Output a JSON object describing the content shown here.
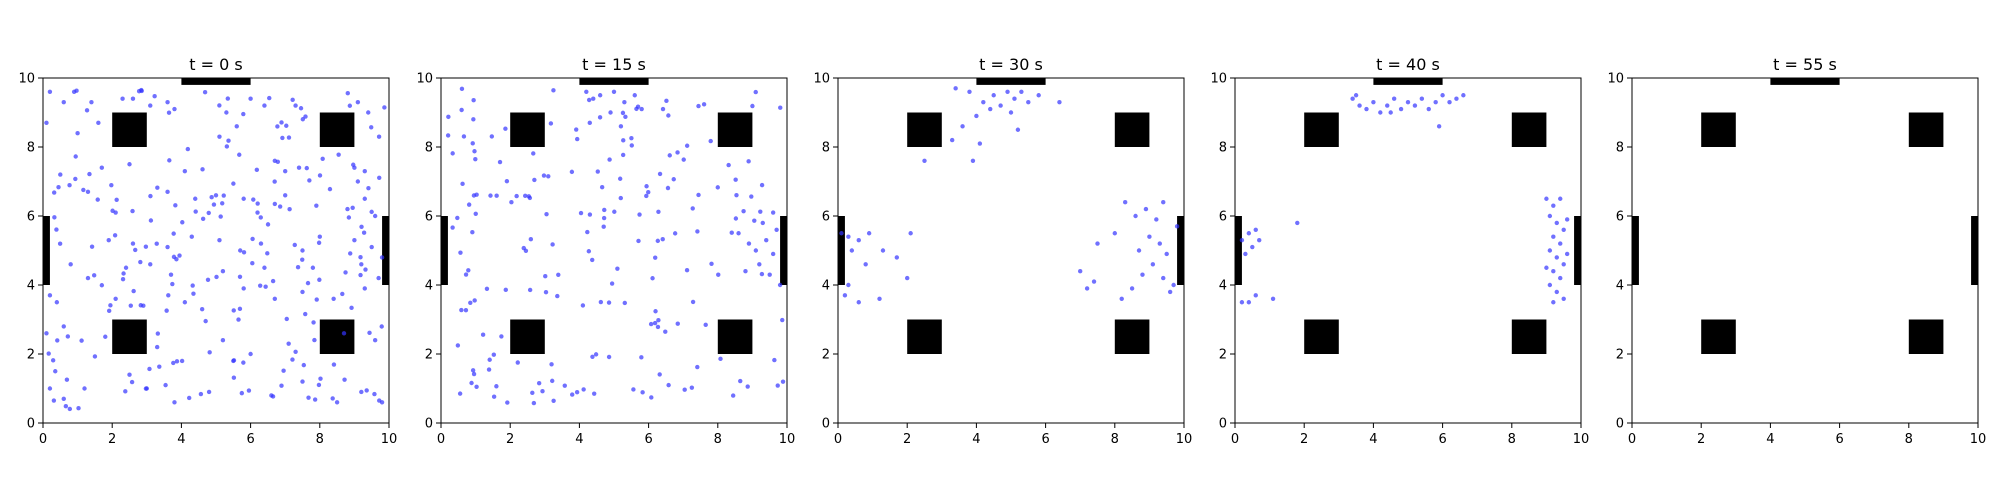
{
  "chart_data": [
    {
      "type": "scatter",
      "title": "t = 0 s",
      "xlabel": "",
      "ylabel": "",
      "xlim": [
        0,
        10
      ],
      "ylim": [
        0,
        10
      ],
      "xticks": [
        "0",
        "2",
        "4",
        "6",
        "8",
        "10"
      ],
      "yticks": [
        "0",
        "2",
        "4",
        "6",
        "8",
        "10"
      ],
      "grid": false,
      "point_color": "#3333ff",
      "distribution": {
        "mode": "uniform",
        "count": 190,
        "region": [
          0.1,
          9.9,
          0.4,
          9.7
        ],
        "seed": 11
      },
      "points": [
        [
          0.2,
          9.6
        ],
        [
          0.6,
          9.3
        ],
        [
          0.9,
          9.6
        ],
        [
          1.4,
          9.3
        ],
        [
          2.3,
          9.4
        ],
        [
          2.6,
          9.4
        ],
        [
          3.1,
          9.2
        ],
        [
          3.6,
          9.3
        ],
        [
          3.8,
          9.1
        ],
        [
          6.0,
          9.4
        ],
        [
          6.4,
          9.2
        ],
        [
          7.3,
          9.2
        ],
        [
          9.1,
          9.3
        ],
        [
          9.4,
          9.0
        ],
        [
          0.1,
          8.7
        ],
        [
          1.0,
          8.4
        ],
        [
          1.6,
          8.7
        ],
        [
          5.3,
          9.0
        ],
        [
          5.1,
          8.3
        ],
        [
          5.6,
          8.6
        ],
        [
          0.5,
          7.2
        ],
        [
          1.7,
          7.4
        ],
        [
          2.5,
          7.5
        ],
        [
          6.7,
          7.6
        ],
        [
          7.0,
          7.3
        ],
        [
          7.4,
          7.4
        ],
        [
          9.0,
          7.4
        ],
        [
          9.1,
          7.0
        ],
        [
          9.3,
          7.3
        ],
        [
          1.3,
          6.7
        ],
        [
          2.1,
          6.1
        ],
        [
          3.6,
          6.7
        ],
        [
          4.4,
          6.5
        ],
        [
          5.0,
          6.6
        ],
        [
          5.8,
          6.5
        ],
        [
          6.2,
          6.1
        ],
        [
          7.0,
          6.6
        ],
        [
          7.9,
          6.3
        ],
        [
          8.8,
          6.2
        ],
        [
          9.3,
          6.5
        ],
        [
          9.6,
          6.0
        ],
        [
          1.9,
          5.3
        ],
        [
          2.6,
          5.2
        ],
        [
          3.6,
          5.1
        ],
        [
          4.3,
          5.4
        ],
        [
          5.1,
          5.3
        ],
        [
          5.7,
          5.0
        ],
        [
          6.3,
          5.2
        ],
        [
          7.5,
          5.0
        ],
        [
          8.0,
          5.4
        ],
        [
          9.0,
          5.3
        ],
        [
          9.5,
          5.1
        ],
        [
          9.8,
          4.8
        ],
        [
          0.8,
          4.6
        ],
        [
          2.4,
          4.5
        ],
        [
          3.1,
          4.6
        ],
        [
          3.7,
          4.3
        ],
        [
          5.2,
          4.4
        ],
        [
          6.4,
          4.5
        ],
        [
          7.8,
          4.5
        ],
        [
          9.2,
          4.6
        ],
        [
          9.7,
          4.2
        ],
        [
          0.2,
          3.7
        ],
        [
          0.4,
          3.5
        ],
        [
          1.3,
          4.2
        ],
        [
          2.1,
          3.6
        ],
        [
          2.9,
          3.4
        ],
        [
          4.1,
          3.5
        ],
        [
          4.6,
          3.3
        ],
        [
          5.8,
          3.9
        ],
        [
          6.7,
          3.6
        ],
        [
          7.5,
          3.8
        ],
        [
          8.4,
          3.6
        ],
        [
          9.3,
          3.9
        ],
        [
          0.1,
          2.6
        ],
        [
          0.6,
          2.8
        ],
        [
          1.8,
          2.5
        ],
        [
          3.3,
          2.2
        ],
        [
          5.2,
          2.4
        ],
        [
          6.0,
          2.0
        ],
        [
          7.1,
          2.3
        ],
        [
          8.7,
          2.6
        ],
        [
          9.6,
          2.4
        ],
        [
          0.2,
          1.0
        ],
        [
          0.6,
          0.7
        ],
        [
          1.2,
          1.0
        ],
        [
          2.5,
          1.4
        ],
        [
          3.0,
          1.0
        ],
        [
          3.8,
          0.6
        ],
        [
          4.8,
          0.9
        ],
        [
          5.5,
          1.8
        ],
        [
          6.6,
          0.8
        ],
        [
          7.5,
          1.2
        ],
        [
          8.5,
          0.6
        ],
        [
          9.2,
          0.9
        ],
        [
          9.8,
          0.6
        ]
      ]
    },
    {
      "type": "scatter",
      "title": "t = 15 s",
      "xlabel": "",
      "ylabel": "",
      "xlim": [
        0,
        10
      ],
      "ylim": [
        0,
        10
      ],
      "xticks": [
        "0",
        "2",
        "4",
        "6",
        "8",
        "10"
      ],
      "yticks": [
        "0",
        "2",
        "4",
        "6",
        "8",
        "10"
      ],
      "grid": false,
      "point_color": "#3333ff",
      "distribution": {
        "mode": "mixed",
        "count": 190,
        "region": [
          0.2,
          9.9,
          0.5,
          9.7
        ],
        "seed": 23
      },
      "points": [
        [
          4.2,
          9.6
        ],
        [
          4.4,
          9.4
        ],
        [
          4.6,
          9.5
        ],
        [
          5.0,
          9.6
        ],
        [
          5.3,
          9.3
        ],
        [
          5.6,
          9.5
        ],
        [
          4.9,
          9.0
        ],
        [
          5.8,
          9.1
        ],
        [
          4.3,
          8.7
        ],
        [
          5.2,
          8.6
        ],
        [
          8.6,
          5.5
        ],
        [
          8.9,
          5.2
        ],
        [
          9.1,
          5.0
        ],
        [
          9.4,
          5.3
        ],
        [
          9.6,
          4.9
        ],
        [
          9.7,
          5.6
        ],
        [
          9.2,
          4.6
        ],
        [
          9.5,
          4.3
        ],
        [
          9.8,
          4.0
        ],
        [
          8.8,
          4.4
        ],
        [
          9.3,
          5.8
        ],
        [
          9.6,
          6.1
        ]
      ]
    },
    {
      "type": "scatter",
      "title": "t = 30 s",
      "xlabel": "",
      "ylabel": "",
      "xlim": [
        0,
        10
      ],
      "ylim": [
        0,
        10
      ],
      "xticks": [
        "0",
        "2",
        "4",
        "6",
        "8",
        "10"
      ],
      "yticks": [
        "0",
        "2",
        "4",
        "6",
        "8",
        "10"
      ],
      "grid": false,
      "point_color": "#3333ff",
      "distribution": {
        "mode": "clusters",
        "count": 0,
        "seed": 37
      },
      "points": [
        [
          3.4,
          9.7
        ],
        [
          3.8,
          9.6
        ],
        [
          4.2,
          9.3
        ],
        [
          4.5,
          9.5
        ],
        [
          4.7,
          9.2
        ],
        [
          4.9,
          9.6
        ],
        [
          5.1,
          9.4
        ],
        [
          5.3,
          9.6
        ],
        [
          5.5,
          9.3
        ],
        [
          5.8,
          9.5
        ],
        [
          4.4,
          9.1
        ],
        [
          5.0,
          9.0
        ],
        [
          6.4,
          9.3
        ],
        [
          4.0,
          8.9
        ],
        [
          3.6,
          8.6
        ],
        [
          5.2,
          8.5
        ],
        [
          3.3,
          8.2
        ],
        [
          4.1,
          8.1
        ],
        [
          2.5,
          7.6
        ],
        [
          3.9,
          7.6
        ],
        [
          0.1,
          5.5
        ],
        [
          0.3,
          5.4
        ],
        [
          0.6,
          5.3
        ],
        [
          0.9,
          5.5
        ],
        [
          0.4,
          5.0
        ],
        [
          1.3,
          5.0
        ],
        [
          0.8,
          4.6
        ],
        [
          1.7,
          4.8
        ],
        [
          0.3,
          4.0
        ],
        [
          0.2,
          3.7
        ],
        [
          0.6,
          3.5
        ],
        [
          1.2,
          3.6
        ],
        [
          2.0,
          4.2
        ],
        [
          2.1,
          5.5
        ],
        [
          8.3,
          6.4
        ],
        [
          8.6,
          6.0
        ],
        [
          8.9,
          6.2
        ],
        [
          9.2,
          5.9
        ],
        [
          9.4,
          6.4
        ],
        [
          9.0,
          5.4
        ],
        [
          9.3,
          5.2
        ],
        [
          8.7,
          5.0
        ],
        [
          9.5,
          4.9
        ],
        [
          9.1,
          4.6
        ],
        [
          8.8,
          4.3
        ],
        [
          9.4,
          4.2
        ],
        [
          9.7,
          4.0
        ],
        [
          9.6,
          3.8
        ],
        [
          8.5,
          3.9
        ],
        [
          8.2,
          3.6
        ],
        [
          7.4,
          4.1
        ],
        [
          7.0,
          4.4
        ],
        [
          7.5,
          5.2
        ],
        [
          8.0,
          5.5
        ],
        [
          7.2,
          3.9
        ],
        [
          9.8,
          5.7
        ]
      ]
    },
    {
      "type": "scatter",
      "title": "t = 40 s",
      "xlabel": "",
      "ylabel": "",
      "xlim": [
        0,
        10
      ],
      "ylim": [
        0,
        10
      ],
      "xticks": [
        "0",
        "2",
        "4",
        "6",
        "8",
        "10"
      ],
      "yticks": [
        "0",
        "2",
        "4",
        "6",
        "8",
        "10"
      ],
      "grid": false,
      "point_color": "#3333ff",
      "distribution": {
        "mode": "clusters",
        "count": 0,
        "seed": 41
      },
      "points": [
        [
          3.4,
          9.4
        ],
        [
          3.6,
          9.2
        ],
        [
          3.8,
          9.1
        ],
        [
          4.0,
          9.3
        ],
        [
          4.2,
          9.0
        ],
        [
          4.4,
          9.2
        ],
        [
          4.6,
          9.4
        ],
        [
          4.8,
          9.1
        ],
        [
          5.0,
          9.3
        ],
        [
          5.2,
          9.2
        ],
        [
          5.4,
          9.4
        ],
        [
          5.6,
          9.1
        ],
        [
          5.8,
          9.3
        ],
        [
          6.0,
          9.5
        ],
        [
          6.2,
          9.3
        ],
        [
          6.4,
          9.4
        ],
        [
          6.6,
          9.5
        ],
        [
          3.5,
          9.5
        ],
        [
          4.5,
          9.0
        ],
        [
          5.9,
          8.6
        ],
        [
          0.2,
          5.3
        ],
        [
          0.4,
          5.5
        ],
        [
          0.5,
          5.1
        ],
        [
          0.7,
          5.3
        ],
        [
          0.3,
          4.9
        ],
        [
          0.6,
          5.6
        ],
        [
          1.8,
          5.8
        ],
        [
          0.4,
          3.5
        ],
        [
          0.6,
          3.7
        ],
        [
          1.1,
          3.6
        ],
        [
          0.2,
          3.5
        ],
        [
          9.0,
          6.5
        ],
        [
          9.2,
          6.3
        ],
        [
          9.4,
          6.5
        ],
        [
          9.1,
          6.0
        ],
        [
          9.3,
          5.8
        ],
        [
          9.5,
          5.6
        ],
        [
          9.2,
          5.4
        ],
        [
          9.4,
          5.2
        ],
        [
          9.1,
          5.0
        ],
        [
          9.3,
          4.8
        ],
        [
          9.5,
          4.6
        ],
        [
          9.2,
          4.4
        ],
        [
          9.4,
          4.2
        ],
        [
          9.1,
          4.0
        ],
        [
          9.3,
          3.8
        ],
        [
          9.5,
          3.6
        ],
        [
          9.2,
          3.5
        ],
        [
          9.6,
          4.9
        ],
        [
          9.0,
          4.5
        ],
        [
          9.6,
          5.9
        ]
      ]
    },
    {
      "type": "scatter",
      "title": "t = 55 s",
      "xlabel": "",
      "ylabel": "",
      "xlim": [
        0,
        10
      ],
      "ylim": [
        0,
        10
      ],
      "xticks": [
        "0",
        "2",
        "4",
        "6",
        "8",
        "10"
      ],
      "yticks": [
        "0",
        "2",
        "4",
        "6",
        "8",
        "10"
      ],
      "grid": false,
      "point_color": "#3333ff",
      "distribution": {
        "mode": "none",
        "count": 0,
        "seed": 0
      },
      "points": []
    }
  ],
  "obstacles": [
    {
      "kind": "exit",
      "x0": 4.0,
      "x1": 6.0,
      "y0": 9.8,
      "y1": 10.0
    },
    {
      "kind": "exit",
      "x0": 0.0,
      "x1": 0.2,
      "y0": 4.0,
      "y1": 6.0
    },
    {
      "kind": "exit",
      "x0": 9.8,
      "x1": 10.0,
      "y0": 4.0,
      "y1": 6.0
    },
    {
      "kind": "pillar",
      "x0": 2.0,
      "x1": 3.0,
      "y0": 8.0,
      "y1": 9.0
    },
    {
      "kind": "pillar",
      "x0": 8.0,
      "x1": 9.0,
      "y0": 8.0,
      "y1": 9.0
    },
    {
      "kind": "pillar",
      "x0": 2.0,
      "x1": 3.0,
      "y0": 2.0,
      "y1": 3.0
    },
    {
      "kind": "pillar",
      "x0": 8.0,
      "x1": 9.0,
      "y0": 2.0,
      "y1": 3.0
    }
  ],
  "colors": {
    "obstacle": "#000000",
    "axes": "#000000",
    "background": "#ffffff"
  }
}
